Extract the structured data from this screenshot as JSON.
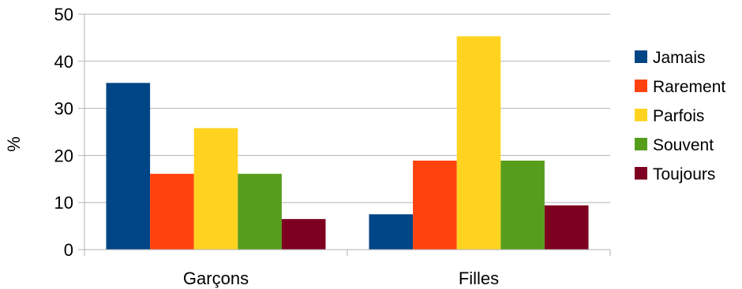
{
  "chart_data": {
    "type": "bar",
    "title": "",
    "xlabel": "",
    "ylabel": "%",
    "ylim": [
      0,
      50
    ],
    "yticks": [
      0,
      10,
      20,
      30,
      40,
      50
    ],
    "grid": true,
    "legend_position": "right",
    "categories": [
      "Garçons",
      "Filles"
    ],
    "series": [
      {
        "name": "Jamais",
        "color": "#004586",
        "values": [
          35.4,
          7.5
        ]
      },
      {
        "name": "Rarement",
        "color": "#ff420e",
        "values": [
          16.1,
          18.9
        ]
      },
      {
        "name": "Parfois",
        "color": "#ffd320",
        "values": [
          25.8,
          45.3
        ]
      },
      {
        "name": "Souvent",
        "color": "#579d1c",
        "values": [
          16.1,
          18.9
        ]
      },
      {
        "name": "Toujours",
        "color": "#7e0021",
        "values": [
          6.5,
          9.4
        ]
      }
    ]
  }
}
